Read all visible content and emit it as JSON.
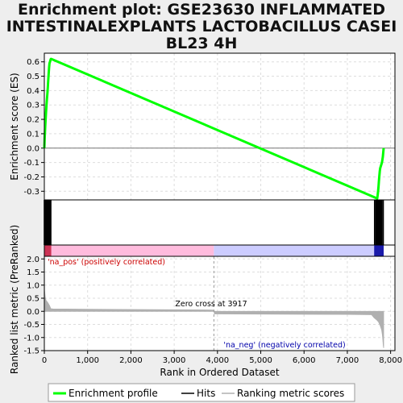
{
  "chart_data": {
    "type": "line",
    "title_lines": [
      "Enrichment plot: GSE23630 INFLAMMATED",
      "INTESTINALEXPLANTS LACTOBACILLUS CASEI",
      "BL23 4H"
    ],
    "top_panel": {
      "ylabel": "Enrichment score (ES)",
      "ylim": [
        -0.36,
        0.66
      ],
      "yticks": [
        0.6,
        0.5,
        0.4,
        0.3,
        0.2,
        0.1,
        0.0,
        -0.1,
        -0.2,
        -0.3
      ],
      "ytick_labels": [
        "0.6",
        "0.5",
        "0.4",
        "0.3",
        "0.2",
        "0.1",
        "0.0",
        "-0.1",
        "-0.2",
        "-0.3"
      ],
      "series": [
        {
          "name": "Enrichment profile",
          "color": "#00ff00",
          "x": [
            0,
            10,
            20,
            30,
            40,
            50,
            60,
            70,
            80,
            90,
            100,
            110,
            120,
            130,
            140,
            150,
            160,
            7690,
            7700,
            7710,
            7720,
            7730,
            7740,
            7750,
            7760,
            7780,
            7800,
            7820,
            7830,
            7840
          ],
          "y": [
            0.0,
            0.08,
            0.15,
            0.2,
            0.25,
            0.3,
            0.34,
            0.38,
            0.42,
            0.47,
            0.52,
            0.56,
            0.59,
            0.6,
            0.61,
            0.62,
            0.62,
            -0.35,
            -0.33,
            -0.3,
            -0.27,
            -0.23,
            -0.19,
            -0.16,
            -0.14,
            -0.12,
            -0.1,
            -0.06,
            -0.03,
            0.0
          ]
        }
      ]
    },
    "hits": {
      "color": "#000000",
      "x": [
        0,
        15,
        30,
        45,
        60,
        75,
        90,
        105,
        120,
        135,
        150,
        7630,
        7660,
        7680,
        7700,
        7720,
        7740,
        7760,
        7780,
        7800,
        7830
      ]
    },
    "colorbar": {
      "zero_cross": 3917,
      "pos_color": "#ffbbdd",
      "neg_color": "#ccccff",
      "pos_dark": "#cc3355",
      "neg_dark": "#1a1aaa"
    },
    "bottom_panel": {
      "ylabel": "Ranked list metric (PreRanked)",
      "ylim": [
        -1.5,
        2.1
      ],
      "yticks": [
        2.0,
        1.5,
        1.0,
        0.5,
        0.0,
        -0.5,
        -1.0,
        -1.5
      ],
      "ytick_labels": [
        "2.0",
        "1.5",
        "1.0",
        "0.5",
        "0.0",
        "-0.5",
        "-1.0",
        "-1.5"
      ],
      "metric": {
        "name": "Ranking metric scores",
        "color": "#b0b0b0",
        "x": [
          0,
          5,
          20,
          40,
          80,
          120,
          150,
          200,
          1000,
          3900,
          3917,
          3930,
          7000,
          7560,
          7620,
          7680,
          7720,
          7760,
          7790,
          7810,
          7820,
          7830,
          7840
        ],
        "y": [
          2.0,
          0.8,
          0.55,
          0.42,
          0.33,
          0.22,
          0.1,
          0.09,
          0.08,
          0.05,
          0.0,
          -0.1,
          -0.12,
          -0.13,
          -0.25,
          -0.33,
          -0.4,
          -0.55,
          -0.7,
          -0.9,
          -1.1,
          -1.3,
          -1.4
        ]
      },
      "annotations": {
        "pos_label": "'na_pos' (positively correlated)",
        "neg_label": "'na_neg' (negatively correlated)",
        "zero_cross_label": "Zero cross at 3917"
      }
    },
    "xaxis": {
      "label": "Rank in Ordered Dataset",
      "xlim": [
        0,
        8100
      ],
      "ticks": [
        0,
        1000,
        2000,
        3000,
        4000,
        5000,
        6000,
        7000,
        8000
      ],
      "tick_labels": [
        "0",
        "1,000",
        "2,000",
        "3,000",
        "4,000",
        "5,000",
        "6,000",
        "7,000",
        "8,000"
      ]
    },
    "legend": {
      "placement": "bottom",
      "items": [
        {
          "label": "Enrichment profile",
          "color": "#00ff00"
        },
        {
          "label": "Hits",
          "color": "#000000"
        },
        {
          "label": "Ranking metric scores",
          "color": "#b0b0b0"
        }
      ]
    }
  }
}
